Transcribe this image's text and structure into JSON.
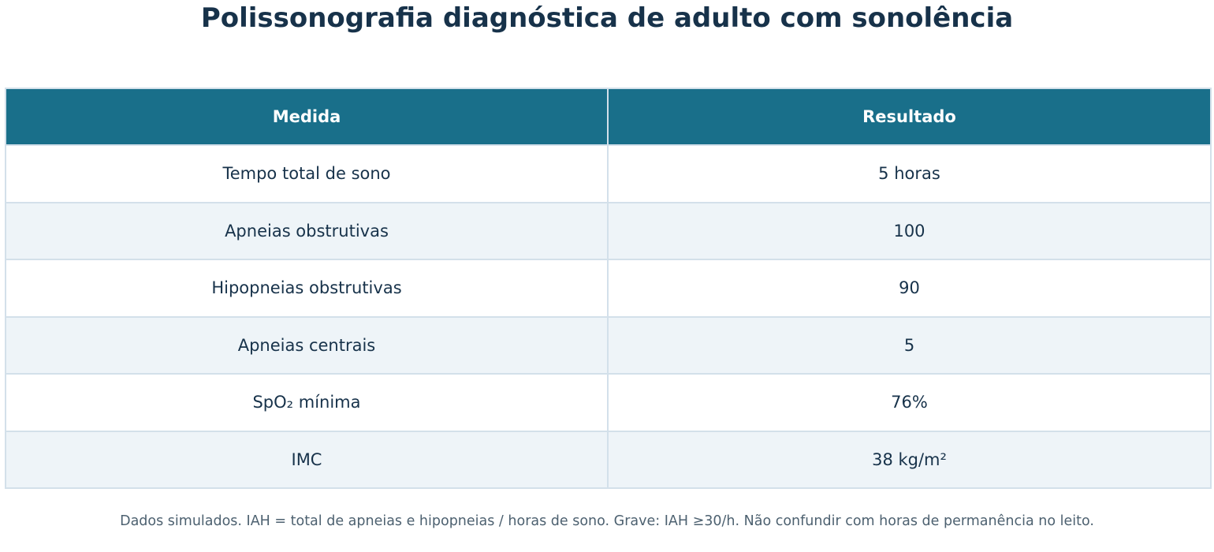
{
  "title": "Polissonografia diagnóstica de adulto com sonolência",
  "chart_data": {
    "type": "table",
    "columns": [
      "Medida",
      "Resultado"
    ],
    "rows": [
      [
        "Tempo total de sono",
        "5 horas"
      ],
      [
        "Apneias obstrutivas",
        "100"
      ],
      [
        "Hipopneias obstrutivas",
        "90"
      ],
      [
        "Apneias centrais",
        "5"
      ],
      [
        "SpO₂ mínima",
        "76%"
      ],
      [
        "IMC",
        "38 kg/m²"
      ]
    ]
  },
  "footnote": "Dados simulados. IAH = total de apneias e hipopneias / horas de sono. Grave: IAH ≥30/h. Não confundir com horas de permanência no leito.",
  "colors": {
    "header_bg": "#196f8a",
    "header_text": "#ffffff",
    "body_text": "#17324a",
    "stripe": "#eef4f8",
    "border": "#d3e0ea"
  }
}
